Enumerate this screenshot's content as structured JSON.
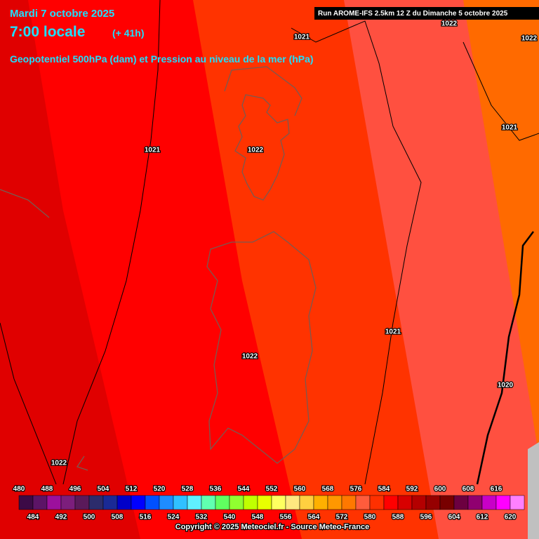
{
  "header": {
    "date": "Mardi 7 octobre 2025",
    "time": "7:00 locale",
    "lead": "(+ 41h)",
    "subtitle": "Geopotentiel 500hPa (dam) et Pression au niveau de la mer (hPa)",
    "run": "Run AROME-IFS 2.5km 12 Z du Dimanche 5 octobre 2025"
  },
  "isobar_labels": [
    "1021",
    "1022",
    "1022",
    "1021",
    "1021",
    "1022",
    "1021",
    "1022",
    "1020",
    "1022"
  ],
  "legend": {
    "levels": [
      480,
      484,
      488,
      492,
      496,
      500,
      504,
      508,
      512,
      516,
      520,
      524,
      528,
      532,
      536,
      540,
      544,
      548,
      552,
      556,
      560,
      564,
      568,
      572,
      576,
      580,
      584,
      588,
      592,
      596,
      600,
      604,
      608,
      612,
      616,
      620
    ],
    "colors": [
      "#3c0a46",
      "#5c1466",
      "#9c109c",
      "#7c1e7c",
      "#5a1a5a",
      "#2c2c6c",
      "#1a2a96",
      "#0000c8",
      "#0000ff",
      "#0050ff",
      "#1e8cff",
      "#30c0ff",
      "#60f0ff",
      "#60ffb0",
      "#60ff60",
      "#90ff30",
      "#c0ff00",
      "#e8ff00",
      "#ffff60",
      "#ffe880",
      "#ffd040",
      "#ffb000",
      "#ff9800",
      "#ff7800",
      "#ff5c3c",
      "#ff3000",
      "#ff0000",
      "#d80000",
      "#b40000",
      "#960000",
      "#780000",
      "#6c0040",
      "#900070",
      "#c800c8",
      "#ff00ff",
      "#ff80ff"
    ]
  },
  "footer": "Copyright © 2025 Meteociel.fr - Source Meteo-France"
}
